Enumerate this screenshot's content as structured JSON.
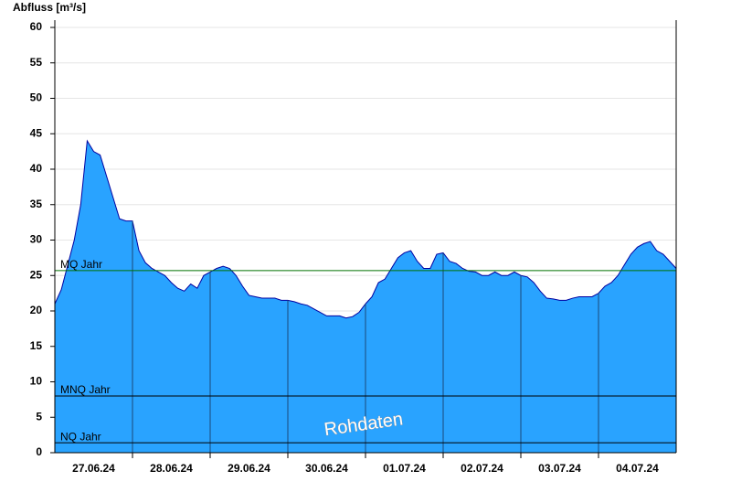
{
  "chart_data": {
    "type": "area",
    "y_axis_label": "Abfluss [m³/s]",
    "annotation": "Rohdaten",
    "categories": [
      null,
      null,
      null,
      null,
      null,
      null,
      "27.06.24",
      null,
      null,
      null,
      null,
      null,
      null,
      null,
      null,
      null,
      null,
      null,
      "28.06.24",
      null,
      null,
      null,
      null,
      null,
      null,
      null,
      null,
      null,
      null,
      null,
      "29.06.24",
      null,
      null,
      null,
      null,
      null,
      null,
      null,
      null,
      null,
      null,
      null,
      "30.06.24",
      null,
      null,
      null,
      null,
      null,
      null,
      null,
      null,
      null,
      null,
      null,
      "01.07.24",
      null,
      null,
      null,
      null,
      null,
      null,
      null,
      null,
      null,
      null,
      null,
      "02.07.24",
      null,
      null,
      null,
      null,
      null,
      null,
      null,
      null,
      null,
      null,
      null,
      "03.07.24",
      null,
      null,
      null,
      null,
      null,
      null,
      null,
      null,
      null,
      null,
      null,
      "04.07.24",
      null,
      null,
      null,
      null,
      null,
      null
    ],
    "series": [
      {
        "name": "Abfluss",
        "color": "#29a3ff",
        "line_color": "#0000a0",
        "values": [
          21,
          23,
          26.5,
          30,
          35,
          44,
          42.5,
          42,
          39,
          36,
          33,
          32.7,
          32.7,
          28.5,
          26.8,
          26,
          25.5,
          25,
          24,
          23.2,
          22.8,
          23.8,
          23.2,
          25,
          25.5,
          26,
          26.3,
          26,
          25,
          23.5,
          22.2,
          22,
          21.8,
          21.8,
          21.8,
          21.5,
          21.5,
          21.3,
          21,
          20.8,
          20.3,
          19.8,
          19.3,
          19.3,
          19.3,
          19,
          19.2,
          19.8,
          21,
          22,
          24,
          24.5,
          26,
          27.5,
          28.2,
          28.5,
          27,
          26,
          26,
          28,
          28.2,
          27,
          26.7,
          26,
          25.6,
          25.5,
          25,
          25,
          25.5,
          25,
          25,
          25.5,
          25,
          24.8,
          24,
          22.8,
          21.8,
          21.7,
          21.5,
          21.5,
          21.8,
          22,
          22,
          22,
          22.5,
          23.5,
          24,
          25,
          26.5,
          28,
          29,
          29.5,
          29.8,
          28.5,
          28,
          27,
          26
        ]
      }
    ],
    "reference_lines": [
      {
        "label": "MQ Jahr",
        "value": 25.7,
        "color": "#007000"
      },
      {
        "label": "MNQ Jahr",
        "value": 8,
        "color": "#000000"
      },
      {
        "label": "NQ Jahr",
        "value": 1.4,
        "color": "#000000"
      }
    ],
    "ylim": [
      0,
      60
    ],
    "yticks": [
      0,
      5,
      10,
      15,
      20,
      25,
      30,
      35,
      40,
      45,
      50,
      55,
      60
    ],
    "grid": true
  }
}
